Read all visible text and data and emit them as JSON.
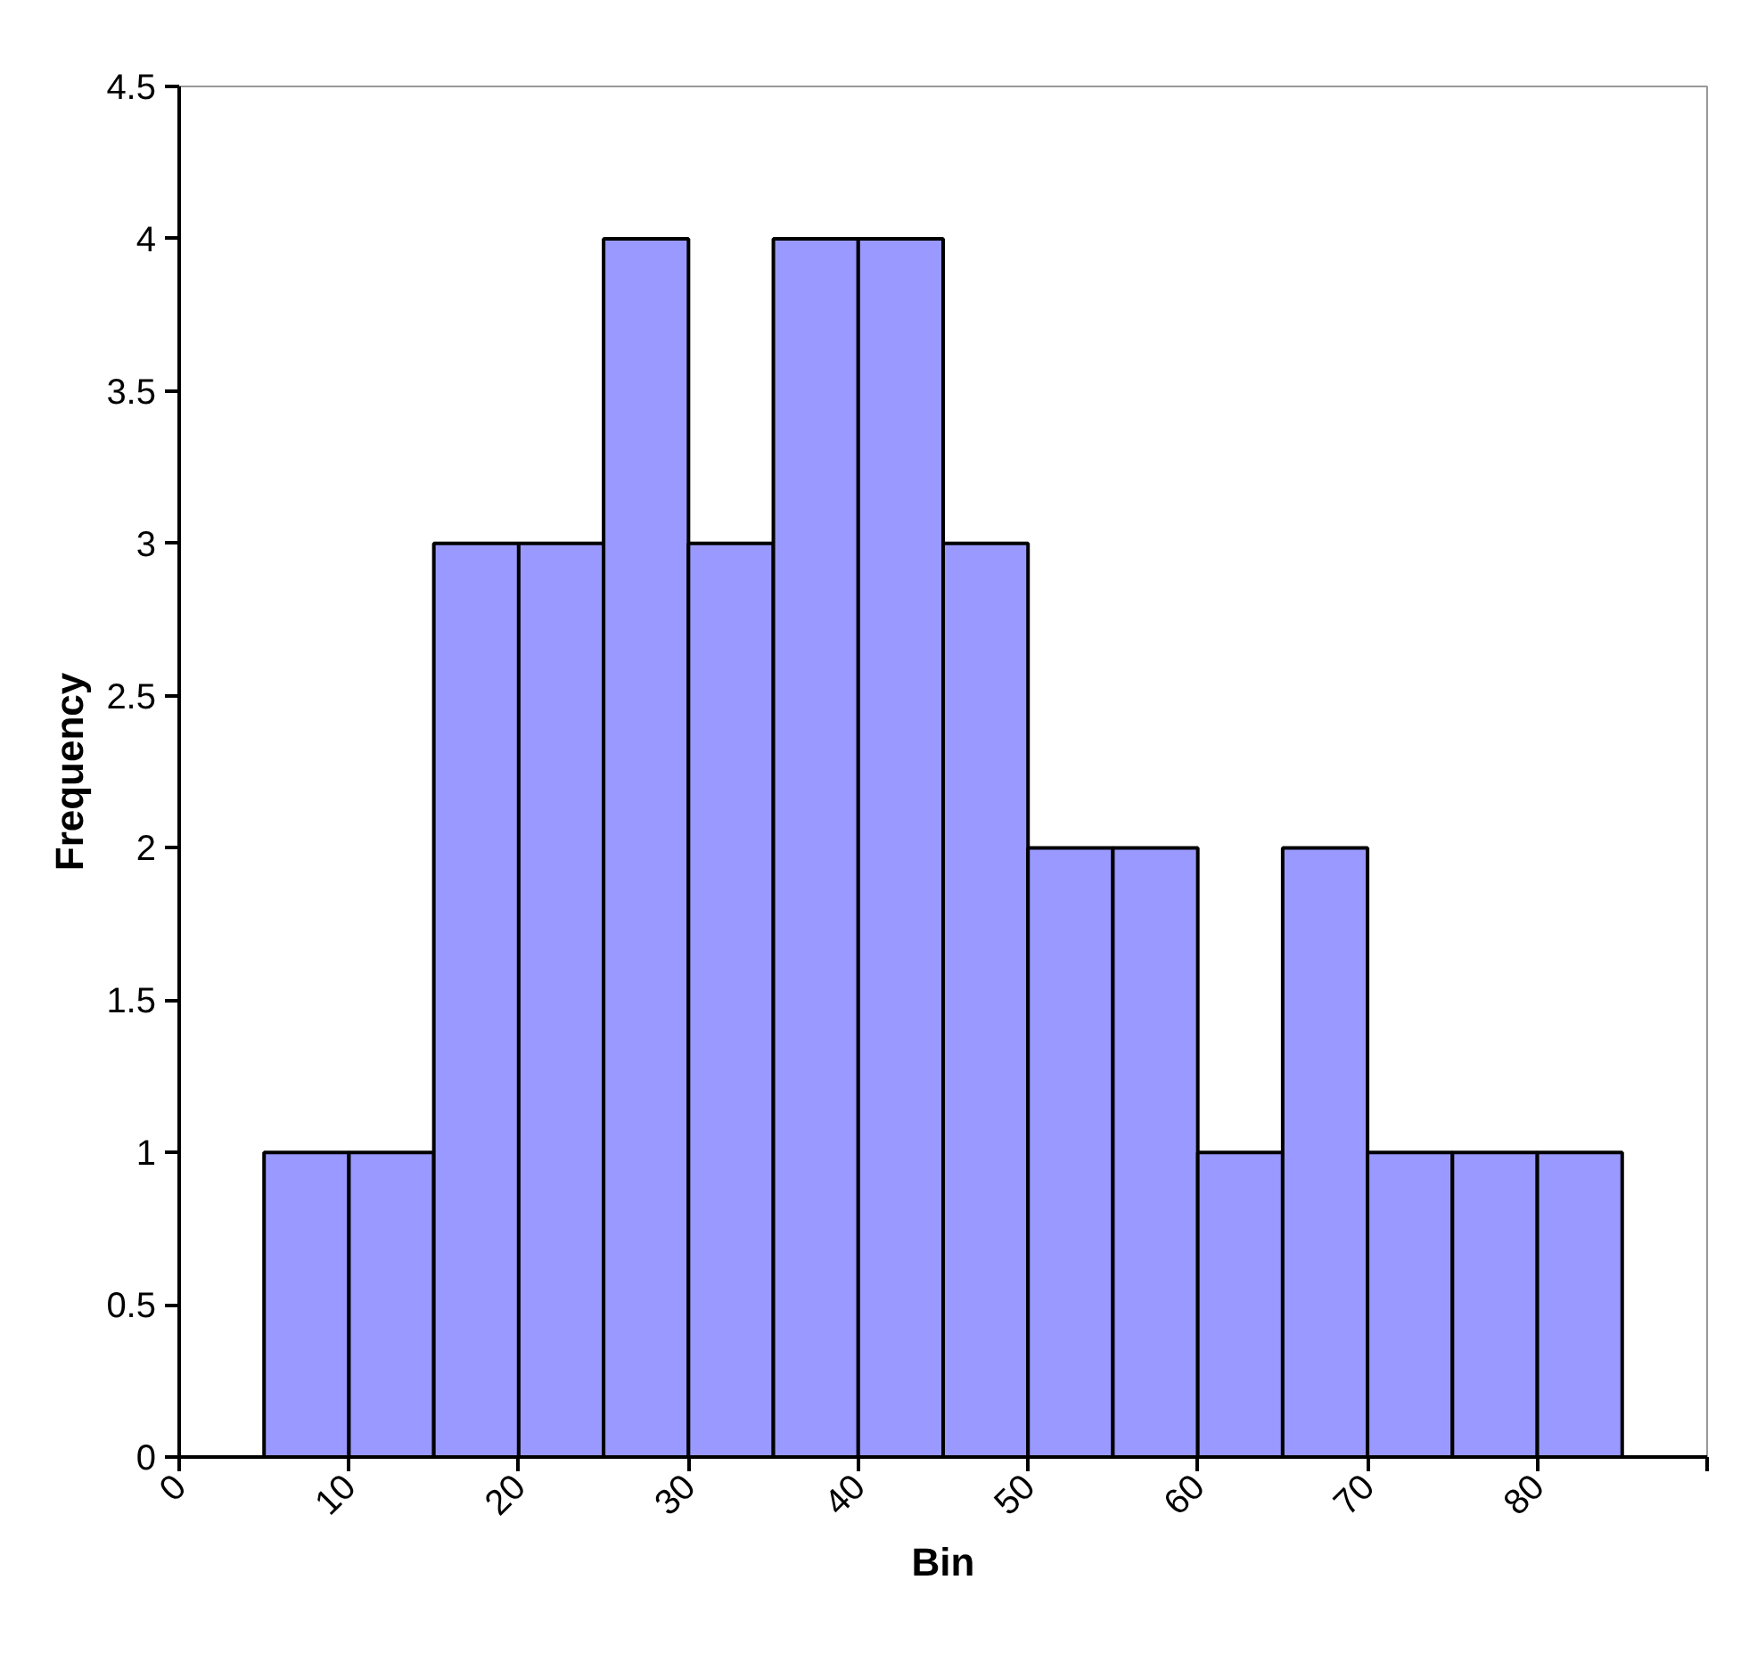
{
  "chart_data": {
    "type": "histogram",
    "xlabel": "Bin",
    "ylabel": "Frequency",
    "bins": [
      5,
      10,
      15,
      20,
      25,
      30,
      35,
      40,
      45,
      50,
      55,
      60,
      65,
      70,
      75,
      80,
      85
    ],
    "values": [
      1,
      1,
      3,
      3,
      4,
      3,
      4,
      4,
      3,
      2,
      2,
      1,
      2,
      1,
      1,
      1
    ],
    "color": "#9999ff",
    "xlim": [
      0,
      90
    ],
    "ylim": [
      0,
      4.5
    ],
    "xticks": [
      0,
      10,
      20,
      30,
      40,
      50,
      60,
      70,
      80,
      {
        "value": 90,
        "label": null
      }
    ],
    "yticks": [
      0,
      0.5,
      1,
      1.5,
      2,
      2.5,
      3,
      3.5,
      4,
      4.5
    ],
    "grid": false
  }
}
